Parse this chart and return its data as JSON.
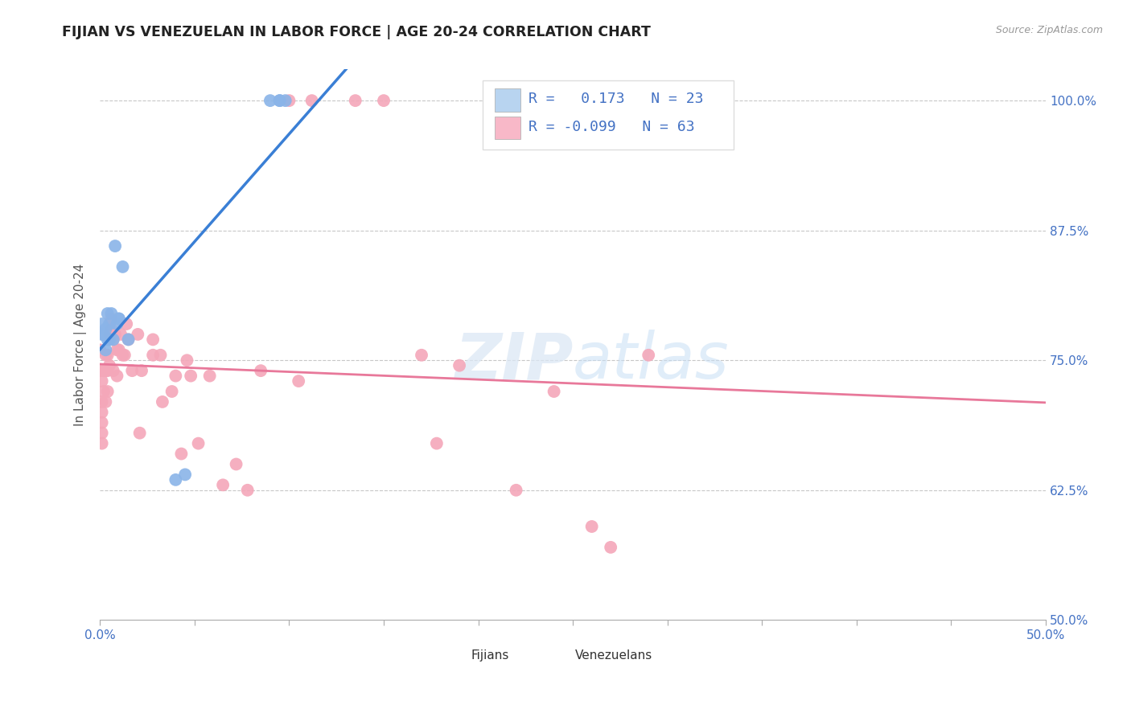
{
  "title": "FIJIAN VS VENEZUELAN IN LABOR FORCE | AGE 20-24 CORRELATION CHART",
  "source": "Source: ZipAtlas.com",
  "ylabel": "In Labor Force | Age 20-24",
  "xlim": [
    0.0,
    0.5
  ],
  "ylim": [
    0.5,
    1.03
  ],
  "ytick_values": [
    0.5,
    0.625,
    0.75,
    0.875,
    1.0
  ],
  "grid_yticks": [
    0.625,
    0.75,
    0.875,
    1.0
  ],
  "watermark_zip": "ZIP",
  "watermark_atlas": "atlas",
  "fijian_color": "#8ab4e8",
  "venezuelan_color": "#f4a7b9",
  "fijian_R": 0.173,
  "fijian_N": 23,
  "venezuelan_R": -0.099,
  "venezuelan_N": 63,
  "fijian_line_color": "#3a7fd5",
  "fijian_dash_color": "#a8cce8",
  "venezuelan_line_color": "#e8789a",
  "legend_box_fijian": "#b8d4f0",
  "legend_box_venezuelan": "#f8b8c8",
  "fijian_x": [
    0.001,
    0.001,
    0.002,
    0.003,
    0.003,
    0.004,
    0.004,
    0.005,
    0.005,
    0.006,
    0.007,
    0.008,
    0.009,
    0.01,
    0.01,
    0.012,
    0.015,
    0.04,
    0.045,
    0.09,
    0.095,
    0.095,
    0.098
  ],
  "fijian_y": [
    0.775,
    0.785,
    0.775,
    0.76,
    0.78,
    0.77,
    0.795,
    0.785,
    0.77,
    0.795,
    0.77,
    0.86,
    0.785,
    0.79,
    0.79,
    0.84,
    0.77,
    0.635,
    0.64,
    1.0,
    1.0,
    1.0,
    1.0
  ],
  "venezuelan_x": [
    0.0,
    0.0,
    0.001,
    0.001,
    0.001,
    0.001,
    0.001,
    0.001,
    0.002,
    0.002,
    0.003,
    0.003,
    0.003,
    0.004,
    0.004,
    0.004,
    0.005,
    0.005,
    0.006,
    0.006,
    0.007,
    0.007,
    0.008,
    0.009,
    0.009,
    0.01,
    0.011,
    0.012,
    0.013,
    0.014,
    0.015,
    0.017,
    0.02,
    0.021,
    0.022,
    0.028,
    0.028,
    0.032,
    0.033,
    0.038,
    0.04,
    0.043,
    0.046,
    0.048,
    0.052,
    0.058,
    0.065,
    0.072,
    0.078,
    0.085,
    0.1,
    0.105,
    0.112,
    0.135,
    0.15,
    0.17,
    0.178,
    0.19,
    0.22,
    0.24,
    0.26,
    0.27,
    0.29
  ],
  "venezuelan_y": [
    0.76,
    0.74,
    0.73,
    0.71,
    0.7,
    0.69,
    0.68,
    0.67,
    0.74,
    0.72,
    0.755,
    0.74,
    0.71,
    0.755,
    0.74,
    0.72,
    0.775,
    0.745,
    0.79,
    0.78,
    0.77,
    0.74,
    0.775,
    0.76,
    0.735,
    0.76,
    0.775,
    0.755,
    0.755,
    0.785,
    0.77,
    0.74,
    0.775,
    0.68,
    0.74,
    0.77,
    0.755,
    0.755,
    0.71,
    0.72,
    0.735,
    0.66,
    0.75,
    0.735,
    0.67,
    0.735,
    0.63,
    0.65,
    0.625,
    0.74,
    1.0,
    0.73,
    1.0,
    1.0,
    1.0,
    0.755,
    0.67,
    0.745,
    0.625,
    0.72,
    0.59,
    0.57,
    0.755
  ]
}
